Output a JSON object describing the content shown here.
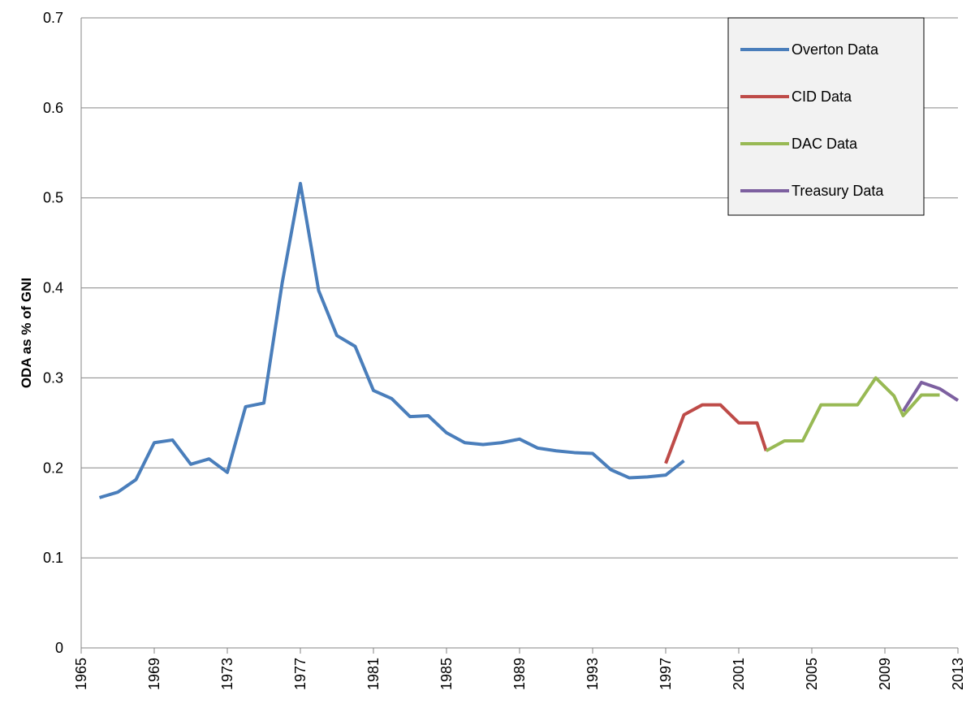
{
  "chart_data": {
    "type": "line",
    "ylabel": "ODA as % of GNI",
    "xlim": [
      1965,
      2013
    ],
    "xticks": [
      1965,
      1969,
      1973,
      1977,
      1981,
      1985,
      1989,
      1993,
      1997,
      2001,
      2005,
      2009,
      2013
    ],
    "ylim": [
      0,
      0.7
    ],
    "yticks": [
      0,
      0.1,
      0.2,
      0.3,
      0.4,
      0.5,
      0.6,
      0.7
    ],
    "grid": true,
    "legend": "upper right",
    "series": [
      {
        "name": "Overton Data",
        "color": "#4a7ebb",
        "x": [
          1966,
          1967,
          1968,
          1969,
          1970,
          1971,
          1972,
          1973,
          1974,
          1975,
          1976,
          1977,
          1978,
          1979,
          1980,
          1981,
          1982,
          1983,
          1984,
          1985,
          1986,
          1987,
          1988,
          1989,
          1990,
          1991,
          1992,
          1993,
          1994,
          1995,
          1996,
          1997,
          1998
        ],
        "values": [
          0.167,
          0.173,
          0.187,
          0.228,
          0.231,
          0.204,
          0.21,
          0.195,
          0.268,
          0.272,
          0.405,
          0.516,
          0.397,
          0.347,
          0.335,
          0.286,
          0.277,
          0.257,
          0.258,
          0.239,
          0.228,
          0.226,
          0.228,
          0.232,
          0.222,
          0.219,
          0.217,
          0.216,
          0.198,
          0.189,
          0.19,
          0.192,
          0.208
        ]
      },
      {
        "name": "CID Data",
        "color": "#be4b48",
        "x": [
          1997,
          1998,
          1999,
          2000,
          2001,
          2002,
          2002.5
        ],
        "values": [
          0.205,
          0.259,
          0.27,
          0.27,
          0.25,
          0.25,
          0.219
        ]
      },
      {
        "name": "DAC Data",
        "color": "#98b954",
        "x": [
          2002.5,
          2003.5,
          2004.5,
          2005.5,
          2006.5,
          2007.5,
          2008.5,
          2009.5,
          2010,
          2011,
          2012
        ],
        "values": [
          0.219,
          0.23,
          0.23,
          0.27,
          0.27,
          0.27,
          0.3,
          0.28,
          0.258,
          0.281,
          0.281
        ]
      },
      {
        "name": "Treasury Data",
        "color": "#7d60a0",
        "x": [
          2010,
          2011,
          2012,
          2013
        ],
        "values": [
          0.263,
          0.295,
          0.288,
          0.275
        ]
      }
    ]
  }
}
